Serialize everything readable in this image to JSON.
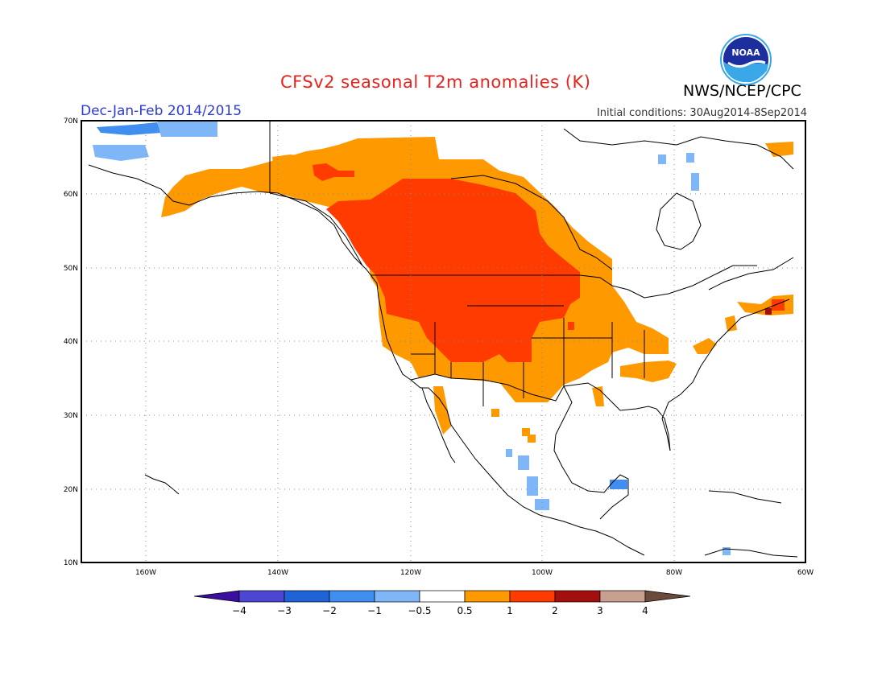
{
  "title": "CFSv2 seasonal T2m anomalies (K)",
  "agency": "NWS/NCEP/CPC",
  "season": "Dec-Jan-Feb 2014/2015",
  "initial_conditions": "Initial conditions: 30Aug2014-8Sep2014",
  "logo_text": "NOAA",
  "axes": {
    "lat_labels": [
      "70N",
      "60N",
      "50N",
      "40N",
      "30N",
      "20N",
      "10N"
    ],
    "lon_labels": [
      "160W",
      "140W",
      "120W",
      "100W",
      "80W",
      "60W"
    ]
  },
  "colorbar": {
    "labels": [
      "−4",
      "−3",
      "−2",
      "−1",
      "−0.5",
      "0.5",
      "1",
      "2",
      "3",
      "4"
    ],
    "colors": [
      "#3a0fa0",
      "#4b47d2",
      "#1f63d6",
      "#3f8ef0",
      "#7fb6f7",
      "#ffffff",
      "#ff9900",
      "#ff3b00",
      "#a10f0f",
      "#c8a090",
      "#6b4a3c"
    ]
  },
  "chart_data": {
    "type": "heatmap",
    "title": "CFSv2 seasonal T2m anomalies (K)",
    "subtitle": "Dec-Jan-Feb 2014/2015",
    "lon_range": [
      -170,
      -60
    ],
    "lat_range": [
      10,
      70
    ],
    "regions": [
      {
        "name": "Western Canada & northern Rockies/Plains",
        "category": "1 to 2 K",
        "color": "#ff3b00"
      },
      {
        "name": "Alaska, western US, southern Plains, Great Lakes, Atlantic Canada",
        "category": "0.5 to 1 K",
        "color": "#ff9900"
      },
      {
        "name": "Bering Sea, Chukchi coast",
        "category": "-1 to -0.5 K",
        "color": "#7fb6f7"
      },
      {
        "name": "NW Alaska coast",
        "category": "-2 to -1 K",
        "color": "#3f8ef0"
      },
      {
        "name": "Yucatan, western Mexico, Gulf",
        "category": "-1 to -0.5 K",
        "color": "#7fb6f7"
      }
    ]
  }
}
